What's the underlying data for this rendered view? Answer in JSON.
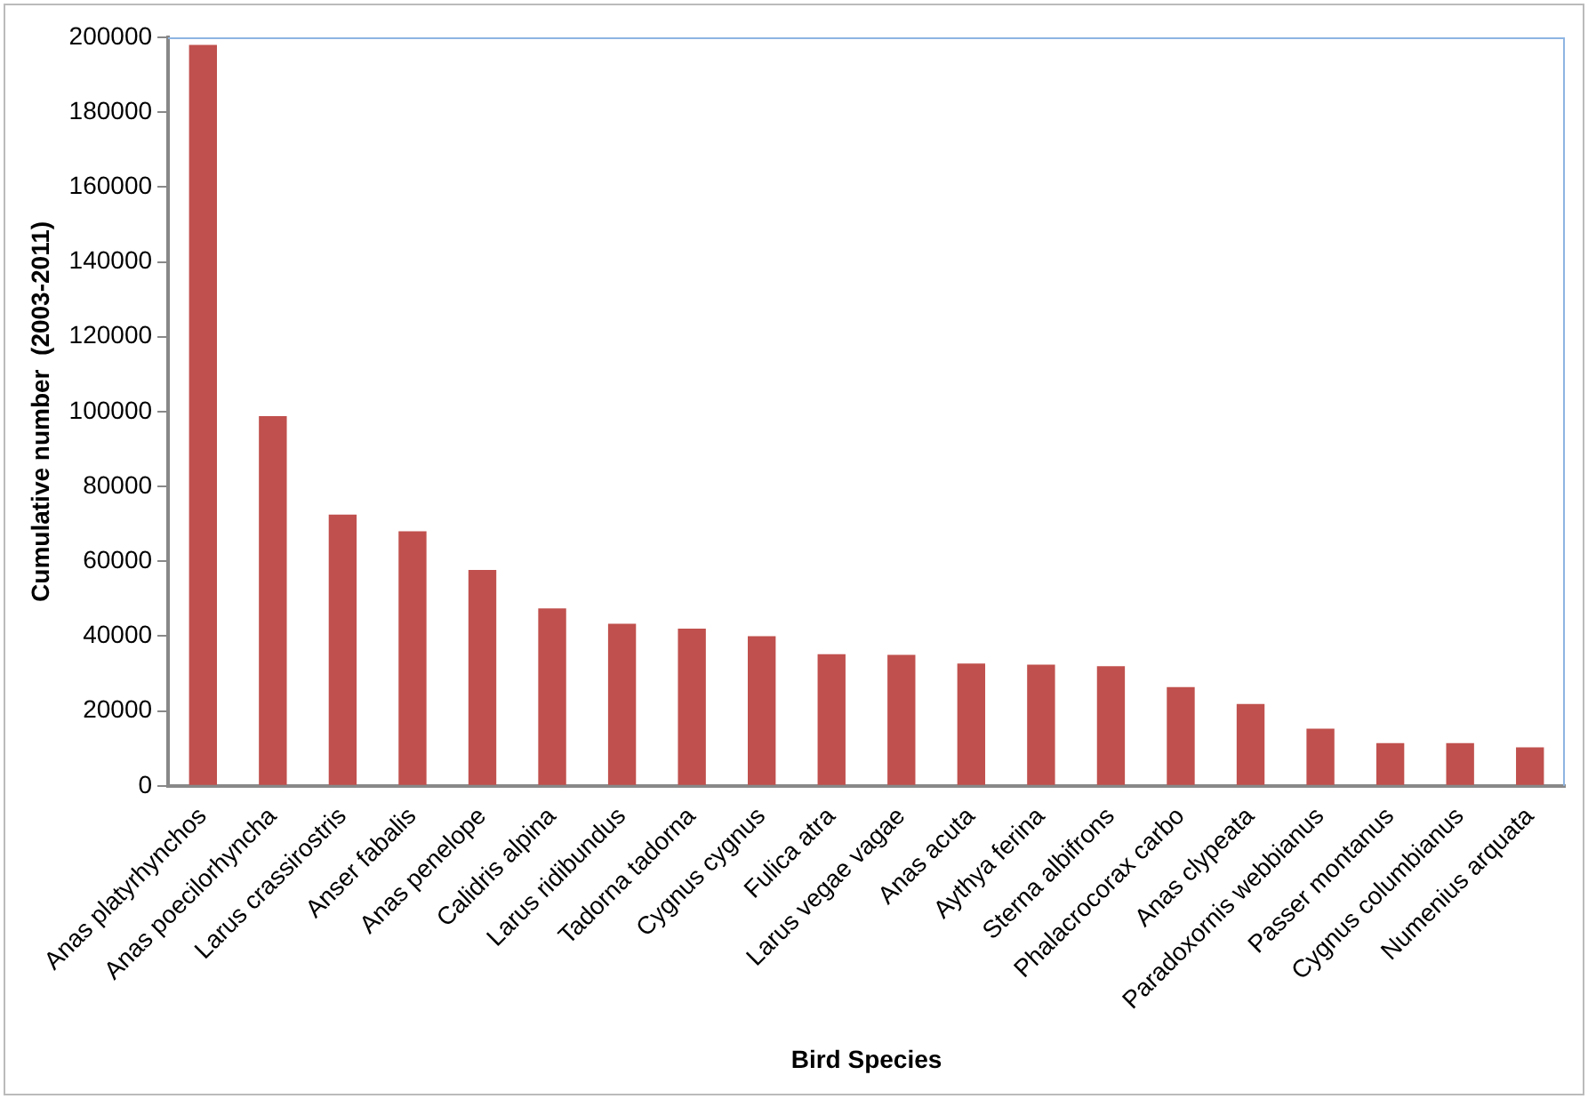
{
  "chart_data": {
    "type": "bar",
    "xlabel": "Bird Species",
    "ylabel": "Cumulative number  (2003-2011)",
    "categories": [
      "Anas platyrhynchos",
      "Anas poecilorhyncha",
      "Larus crassirostris",
      "Anser fabalis",
      "Anas penelope",
      "Calidris alpina",
      "Larus ridibundus",
      "Tadorna tadorna",
      "Cygnus cygnus",
      "Fulica atra",
      "Larus vegae vagae",
      "Anas acuta",
      "Aythya ferina",
      "Sterna albifrons",
      "Phalacrocorax carbo",
      "Anas clypeata",
      "Paradoxornis webbianus",
      "Passer montanus",
      "Cygnus columbianus",
      "Numenius arquata"
    ],
    "values": [
      198000,
      98800,
      72500,
      68000,
      57700,
      47400,
      43300,
      42000,
      40000,
      35200,
      35000,
      32700,
      32400,
      32000,
      26400,
      21900,
      15300,
      11400,
      11400,
      10300
    ],
    "color": "#c0504d",
    "ylim": [
      0,
      200000
    ],
    "yticks": [
      0,
      20000,
      40000,
      60000,
      80000,
      100000,
      120000,
      140000,
      160000,
      180000,
      200000
    ],
    "grid": false,
    "legend": false
  }
}
